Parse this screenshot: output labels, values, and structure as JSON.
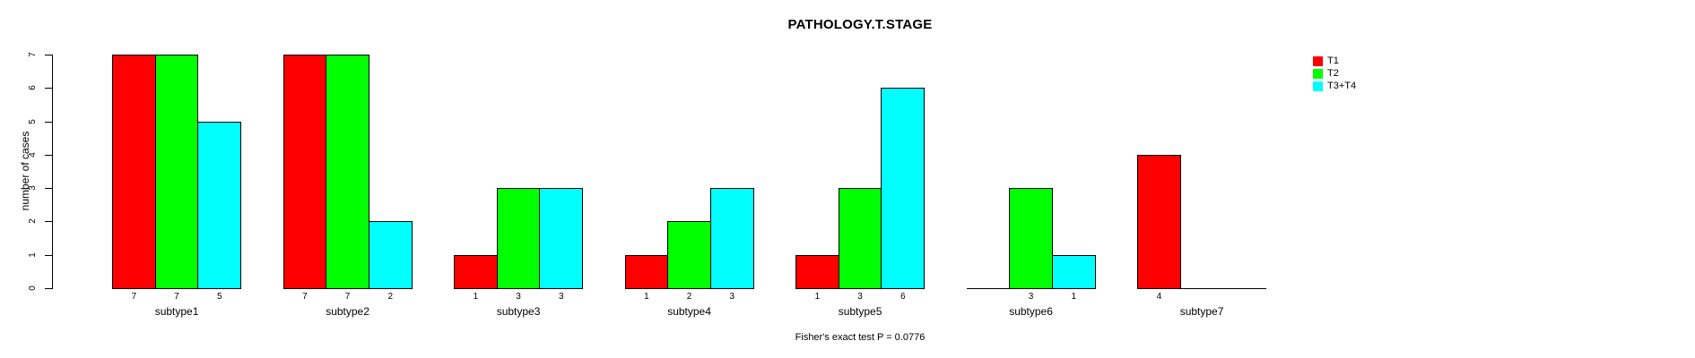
{
  "title": "PATHOLOGY.T.STAGE",
  "footnote": "Fisher's exact test P = 0.0776",
  "y_axis": {
    "label": "number of cases",
    "ticks": [
      0,
      1,
      2,
      3,
      4,
      5,
      6,
      7
    ]
  },
  "legend": [
    {
      "label": "T1",
      "color": "#FF0000"
    },
    {
      "label": "T2",
      "color": "#00FF00"
    },
    {
      "label": "T3+T4",
      "color": "#00FFFF"
    }
  ],
  "chart_data": {
    "type": "bar",
    "title": "PATHOLOGY.T.STAGE",
    "xlabel": "",
    "ylabel": "number of cases",
    "ylim": [
      0,
      7
    ],
    "grid": false,
    "legend_position": "right",
    "categories": [
      "subtype1",
      "subtype2",
      "subtype3",
      "subtype4",
      "subtype5",
      "subtype6",
      "subtype7"
    ],
    "series": [
      {
        "name": "T1",
        "color": "#FF0000",
        "values": [
          7,
          7,
          1,
          1,
          1,
          0,
          4
        ],
        "bar_labels": [
          "7",
          "7",
          "1",
          "1",
          "1",
          null,
          "4"
        ]
      },
      {
        "name": "T2",
        "color": "#00FF00",
        "values": [
          7,
          7,
          3,
          2,
          3,
          3,
          0
        ],
        "bar_labels": [
          "7",
          "7",
          "3",
          "2",
          "3",
          "3",
          null
        ]
      },
      {
        "name": "T3+T4",
        "color": "#00FFFF",
        "values": [
          5,
          2,
          3,
          3,
          6,
          1,
          0
        ],
        "bar_labels": [
          "5",
          "2",
          "3",
          "3",
          "6",
          "1",
          null
        ]
      }
    ],
    "annotation": "Fisher's exact test P = 0.0776"
  }
}
